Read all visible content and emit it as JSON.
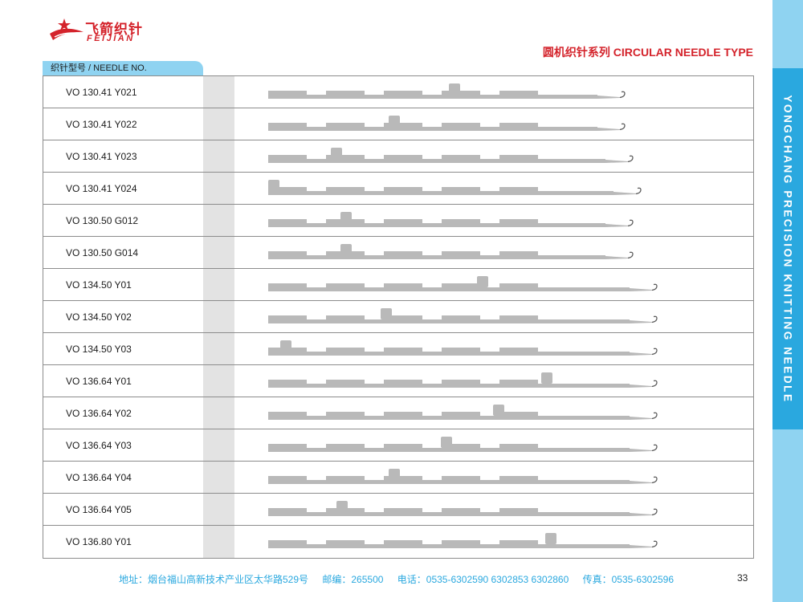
{
  "brand": {
    "name_cn": "飞箭织针",
    "name_en": "FEIJIAN"
  },
  "page_title": "圆机织针系列 CIRCULAR NEEDLE TYPE",
  "side_title": "YONGCHANG PRECISION KNITTING NEEDLE",
  "column_header": "织针型号 / NEEDLE NO.",
  "needles": [
    {
      "label": "VO 130.41 Y021",
      "icon": "needle-drawing"
    },
    {
      "label": "VO 130.41 Y022",
      "icon": "needle-drawing"
    },
    {
      "label": "VO 130.41 Y023",
      "icon": "needle-drawing"
    },
    {
      "label": "VO 130.41 Y024",
      "icon": "needle-drawing"
    },
    {
      "label": "VO 130.50 G012",
      "icon": "needle-drawing"
    },
    {
      "label": "VO 130.50 G014",
      "icon": "needle-drawing"
    },
    {
      "label": "VO 134.50 Y01",
      "icon": "needle-drawing"
    },
    {
      "label": "VO 134.50 Y02",
      "icon": "needle-drawing"
    },
    {
      "label": "VO 134.50 Y03",
      "icon": "needle-drawing"
    },
    {
      "label": "VO 136.64 Y01",
      "icon": "needle-drawing"
    },
    {
      "label": "VO 136.64 Y02",
      "icon": "needle-drawing"
    },
    {
      "label": "VO 136.64 Y03",
      "icon": "needle-drawing"
    },
    {
      "label": "VO 136.64 Y04",
      "icon": "needle-drawing"
    },
    {
      "label": "VO 136.64 Y05",
      "icon": "needle-drawing"
    },
    {
      "label": "VO 136.80 Y01",
      "icon": "needle-drawing"
    }
  ],
  "footer": {
    "address": "地址：烟台福山高新技术产业区太华路529号",
    "postcode": "邮编：265500",
    "phone": "电话：0535-6302590 6302853 6302860",
    "fax": "传真：0535-6302596"
  },
  "page_number": "33",
  "colors": {
    "brand_red": "#d4232b",
    "accent_blue": "#2aa8df",
    "light_blue": "#8fd3f1",
    "needle_gray": "#b9b9b9"
  }
}
